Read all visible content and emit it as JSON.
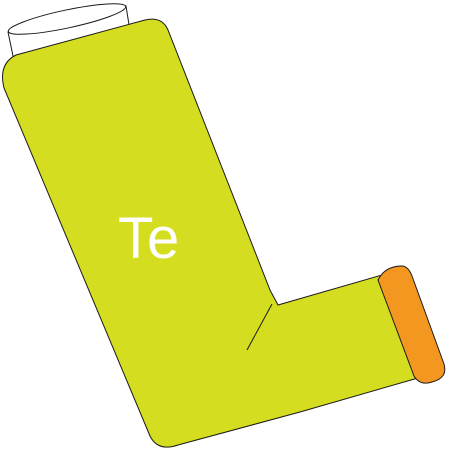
{
  "inhaler": {
    "label": "Te",
    "colors": {
      "body": "#d4dd20",
      "cap": "#f49720",
      "canister": "#ffffff",
      "outline": "#1a1a1a",
      "label": "#ffffff"
    }
  }
}
